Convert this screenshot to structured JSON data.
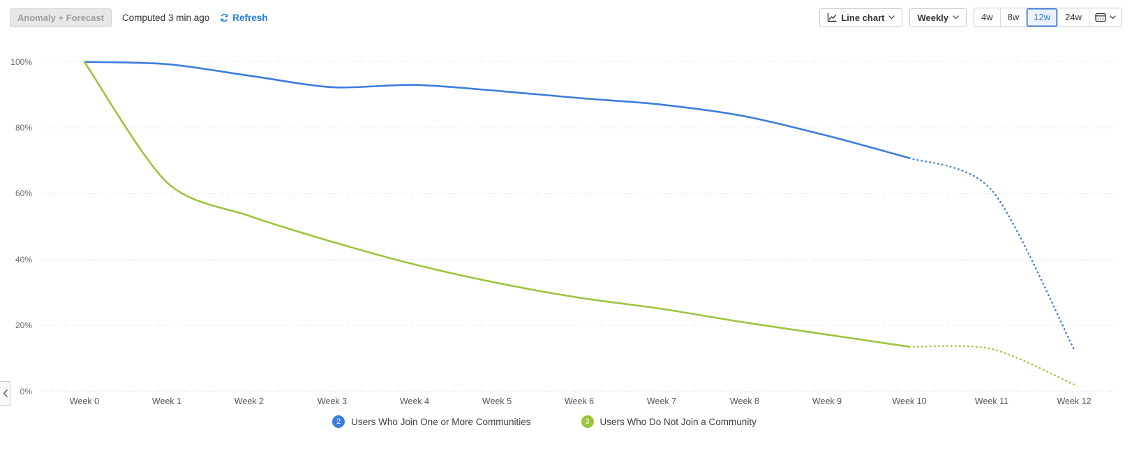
{
  "toolbar": {
    "anomaly_button": "Anomaly + Forecast",
    "computed_text": "Computed 3 min ago",
    "refresh_label": "Refresh",
    "chart_type_label": "Line chart",
    "interval_label": "Weekly",
    "range_options": [
      "4w",
      "8w",
      "12w",
      "24w"
    ],
    "active_range": "12w"
  },
  "legend": [
    {
      "index": "2",
      "label": "Users Who Join One or More Communities",
      "color": "#3b7ddd"
    },
    {
      "index": "3",
      "label": "Users Who Do Not Join a Community",
      "color": "#9bc53c"
    }
  ],
  "chart_data": {
    "type": "line",
    "x_labels": [
      "Week 0",
      "Week 1",
      "Week 2",
      "Week 3",
      "Week 4",
      "Week 5",
      "Week 6",
      "Week 7",
      "Week 8",
      "Week 9",
      "Week 10",
      "Week 11",
      "Week 12"
    ],
    "y_ticks": [
      0,
      20,
      40,
      60,
      80,
      100
    ],
    "y_tick_suffix": "%",
    "ylim": [
      0,
      100
    ],
    "grid": "horizontal-dotted",
    "legend_position": "bottom",
    "forecast_start_index": 10,
    "series": [
      {
        "name": "Users Who Join One or More Communities",
        "color": "#3b7ddd",
        "actual": [
          100,
          99.3,
          95.8,
          92.3,
          93,
          91.2,
          89,
          87,
          83.5,
          77.6,
          70.8
        ],
        "forecast": [
          70.8,
          61,
          12.5
        ]
      },
      {
        "name": "Users Who Do Not Join a Community",
        "color": "#9bc53c",
        "actual": [
          100,
          63.4,
          53.2,
          45.4,
          38.5,
          32.9,
          28.4,
          25,
          20.9,
          17.2,
          13.5
        ],
        "forecast": [
          13.5,
          12.8,
          2
        ]
      }
    ]
  }
}
